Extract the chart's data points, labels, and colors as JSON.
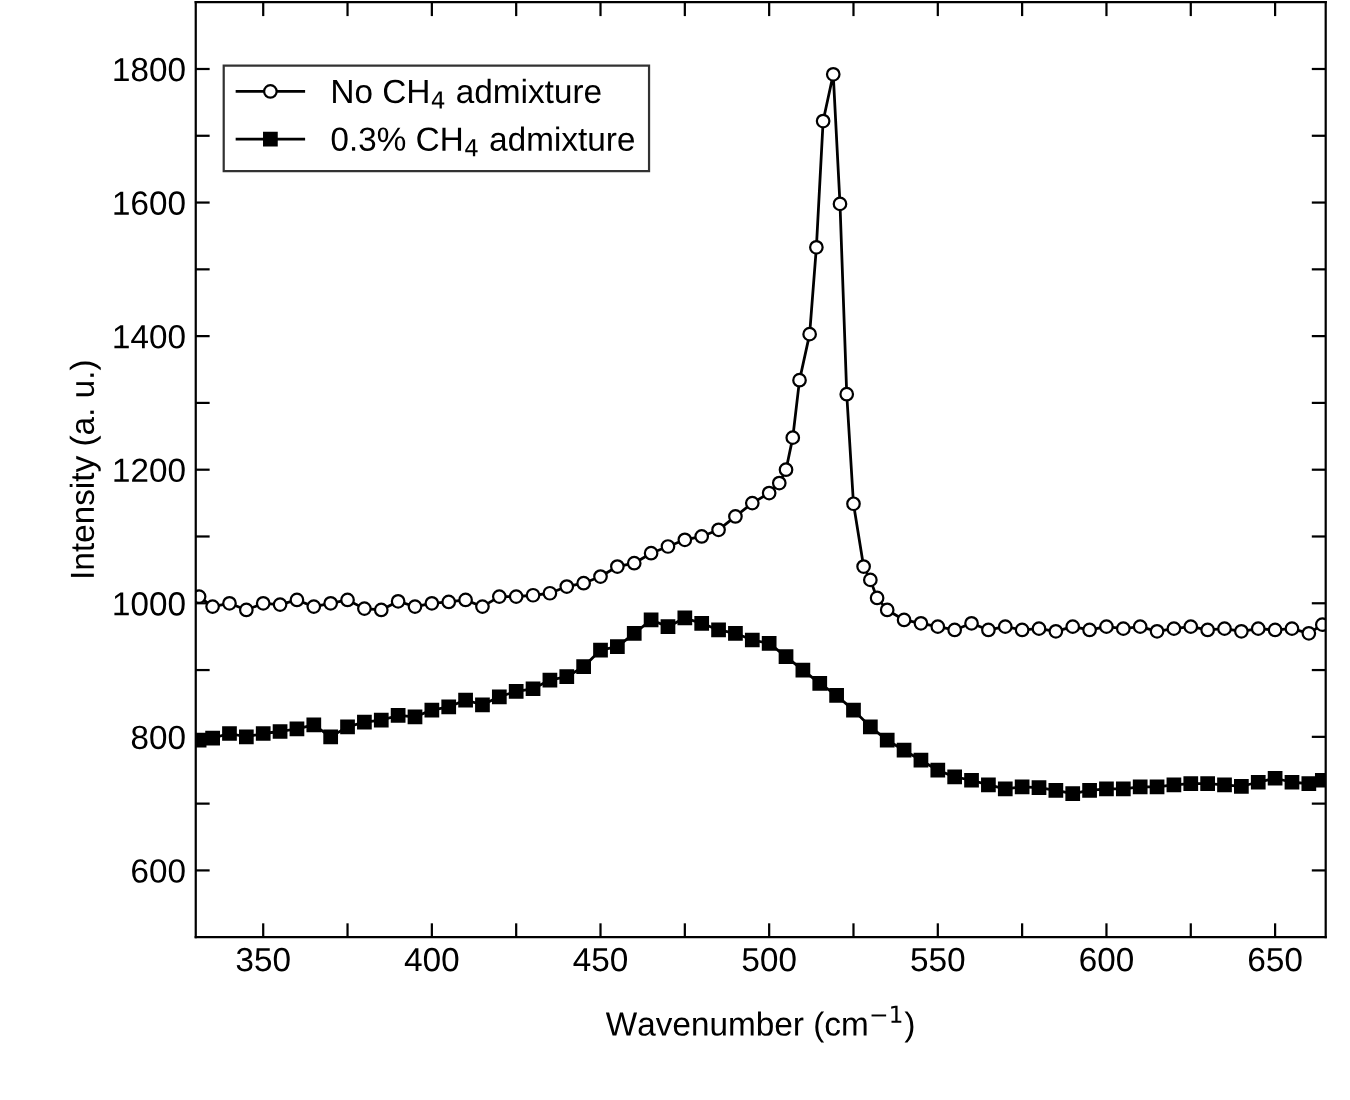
{
  "chart_data": {
    "type": "line",
    "xlabel": "Wavenumber (cm$^{−1}$)",
    "ylabel": "Intensity (a. u.)",
    "xlim": [
      330,
      665
    ],
    "ylim": [
      500,
      1900
    ],
    "xticks": [
      350,
      {
        "value": 375,
        "label": null
      },
      400,
      {
        "value": 425,
        "label": null
      },
      450,
      {
        "value": 475,
        "label": null
      },
      500,
      {
        "value": 525,
        "label": null
      },
      550,
      {
        "value": 575,
        "label": null
      },
      600,
      {
        "value": 625,
        "label": null
      },
      650
    ],
    "yticks": [
      600,
      {
        "value": 700,
        "label": null
      },
      800,
      {
        "value": 900,
        "label": null
      },
      1000,
      {
        "value": 1100,
        "label": null
      },
      1200,
      {
        "value": 1300,
        "label": null
      },
      1400,
      {
        "value": 1500,
        "label": null
      },
      1600,
      {
        "value": 1700,
        "label": null
      },
      1800
    ],
    "grid": false,
    "legend": "top left",
    "line_style": "solid",
    "series": [
      {
        "name": "No CH$_{4}$ admixture",
        "color": "#000000",
        "marker": "circle",
        "x": [
          331,
          335,
          340,
          345,
          350,
          355,
          360,
          365,
          370,
          375,
          380,
          385,
          390,
          395,
          400,
          405,
          410,
          415,
          420,
          425,
          430,
          435,
          440,
          445,
          450,
          455,
          460,
          465,
          470,
          475,
          480,
          485,
          490,
          495,
          500,
          503,
          505,
          507,
          509,
          512,
          514,
          516,
          519,
          521,
          523,
          525,
          528,
          530,
          532,
          535,
          540,
          545,
          550,
          555,
          560,
          565,
          570,
          575,
          580,
          585,
          590,
          595,
          600,
          605,
          610,
          615,
          620,
          625,
          630,
          635,
          640,
          645,
          650,
          655,
          660,
          664
        ],
        "values": [
          1010,
          995,
          1000,
          990,
          1000,
          998,
          1005,
          995,
          1000,
          1005,
          992,
          990,
          1003,
          995,
          1000,
          1002,
          1005,
          995,
          1010,
          1010,
          1012,
          1015,
          1025,
          1030,
          1040,
          1055,
          1060,
          1075,
          1085,
          1095,
          1100,
          1110,
          1130,
          1150,
          1165,
          1180,
          1200,
          1248,
          1334,
          1403,
          1533,
          1722,
          1792,
          1598,
          1313,
          1149,
          1055,
          1035,
          1008,
          990,
          975,
          970,
          965,
          960,
          970,
          960,
          965,
          960,
          962,
          958,
          965,
          960,
          965,
          962,
          965,
          958,
          962,
          965,
          960,
          962,
          958,
          962,
          960,
          962,
          955,
          968
        ]
      },
      {
        "name": "0.3% CH$_{4}$ admixture",
        "color": "#000000",
        "marker": "square",
        "x": [
          331,
          335,
          340,
          345,
          350,
          355,
          360,
          365,
          370,
          375,
          380,
          385,
          390,
          395,
          400,
          405,
          410,
          415,
          420,
          425,
          430,
          435,
          440,
          445,
          450,
          455,
          460,
          465,
          470,
          475,
          480,
          485,
          490,
          495,
          500,
          505,
          510,
          515,
          520,
          525,
          530,
          535,
          540,
          545,
          550,
          555,
          560,
          565,
          570,
          575,
          580,
          585,
          590,
          595,
          600,
          605,
          610,
          615,
          620,
          625,
          630,
          635,
          640,
          645,
          650,
          655,
          660,
          664
        ],
        "values": [
          795,
          798,
          805,
          800,
          805,
          808,
          812,
          818,
          800,
          815,
          822,
          825,
          832,
          830,
          840,
          845,
          855,
          848,
          860,
          868,
          872,
          885,
          890,
          905,
          930,
          935,
          955,
          975,
          965,
          978,
          970,
          960,
          955,
          945,
          940,
          920,
          900,
          880,
          862,
          840,
          815,
          795,
          780,
          765,
          750,
          740,
          735,
          728,
          722,
          725,
          724,
          720,
          715,
          720,
          722,
          722,
          725,
          725,
          728,
          730,
          730,
          728,
          726,
          732,
          738,
          732,
          730,
          735
        ]
      }
    ]
  }
}
